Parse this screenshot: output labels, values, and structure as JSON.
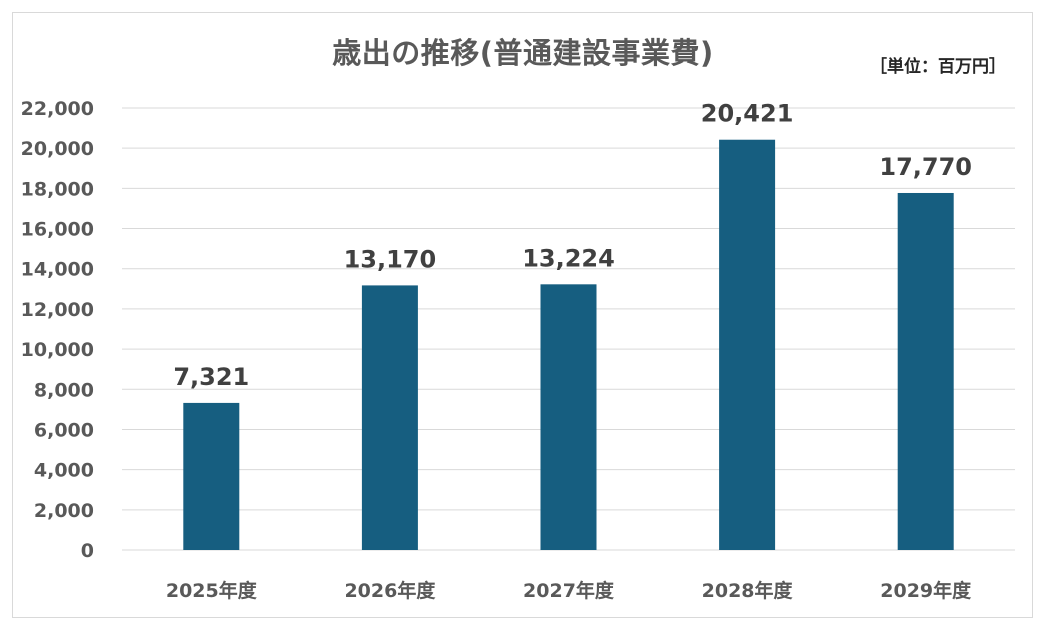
{
  "chart_data": {
    "type": "bar",
    "title": "歳出の推移(普通建設事業費)",
    "unit": "［単位：百万円］",
    "categories": [
      "2025年度",
      "2026年度",
      "2027年度",
      "2028年度",
      "2029年度"
    ],
    "values": [
      7321,
      13170,
      13224,
      20421,
      17770
    ],
    "data_labels": [
      "7,321",
      "13,170",
      "13,224",
      "20,421",
      "17,770"
    ],
    "ylim": [
      0,
      22000
    ],
    "yticks": [
      0,
      2000,
      4000,
      6000,
      8000,
      10000,
      12000,
      14000,
      16000,
      18000,
      20000,
      22000
    ],
    "ytick_labels": [
      "0",
      "2,000",
      "4,000",
      "6,000",
      "8,000",
      "10,000",
      "12,000",
      "14,000",
      "16,000",
      "18,000",
      "20,000",
      "22,000"
    ],
    "grid": true,
    "legend": "none",
    "bar_color": "#165e80",
    "grid_color": "#d9d9d9"
  }
}
